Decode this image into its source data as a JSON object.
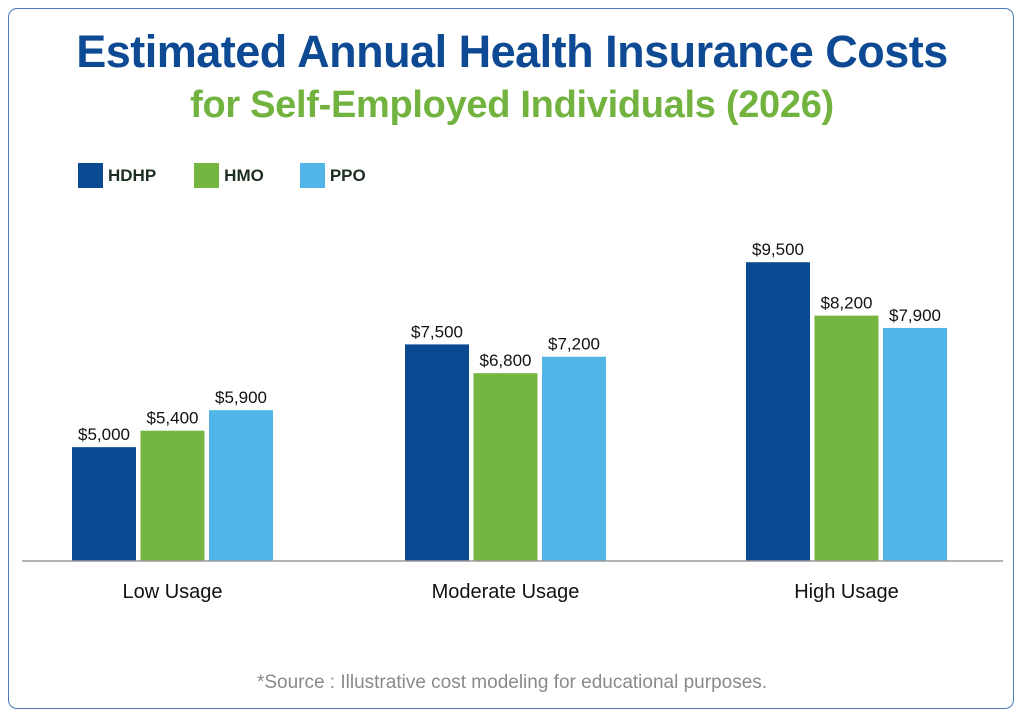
{
  "chart_data": {
    "type": "bar",
    "title": "Estimated Annual Health Insurance Costs",
    "subtitle": "for Self-Employed Individuals (2026)",
    "categories": [
      "Low Usage",
      "Moderate Usage",
      "High Usage"
    ],
    "series": [
      {
        "name": "HDHP",
        "color": "#0b4a92",
        "values": [
          5000,
          7500,
          9500
        ],
        "labels": [
          "$5,000",
          "$7,500",
          "$9,500"
        ]
      },
      {
        "name": "HMO",
        "color": "#74b640",
        "values": [
          5400,
          6800,
          8200
        ],
        "labels": [
          "$5,400",
          "$6,800",
          "$8,200"
        ]
      },
      {
        "name": "PPO",
        "color": "#52b5e8",
        "values": [
          5900,
          7200,
          7900
        ],
        "labels": [
          "$5,900",
          "$7,200",
          "$7,900"
        ]
      }
    ],
    "xlabel": "",
    "ylabel": "",
    "grid": false,
    "legend_position": "top-left",
    "source_note": "*Source : Illustrative cost modeling for educational purposes."
  }
}
